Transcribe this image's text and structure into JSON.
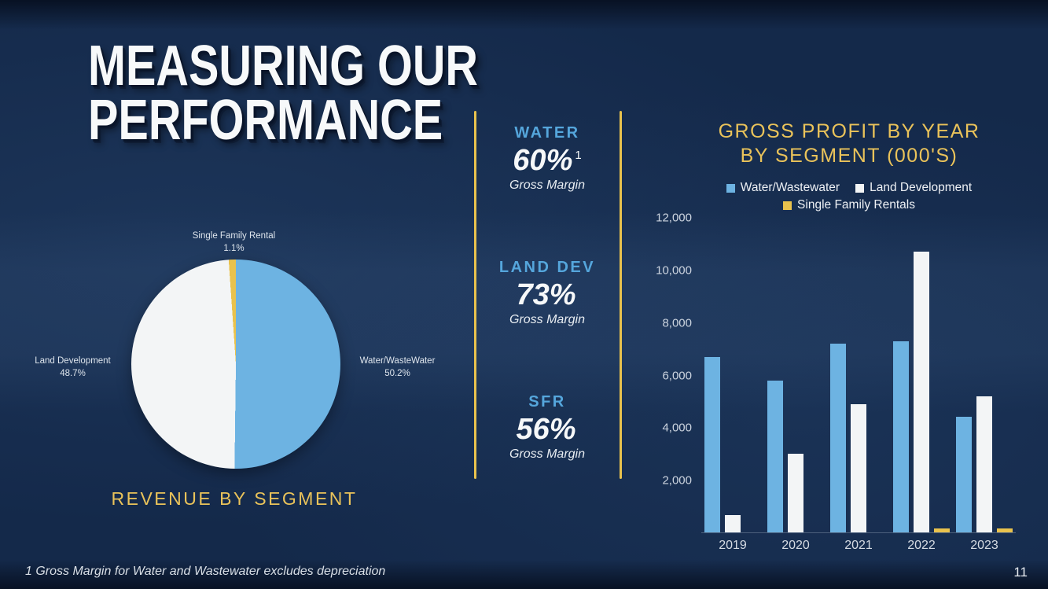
{
  "slide": {
    "title_line1": "MEASURING OUR",
    "title_line2": "PERFORMANCE",
    "footnote": "1 Gross Margin for Water and Wastewater excludes depreciation",
    "page_number": "11"
  },
  "colors": {
    "background": "#14294a",
    "accent_yellow": "#e9c24d",
    "accent_blue": "#6db3e2",
    "segment_label_blue": "#55a6dc",
    "white_series": "#f3f5f6"
  },
  "margins": {
    "items": [
      {
        "segment": "WATER",
        "value": "60%",
        "superscript": "1",
        "label": "Gross Margin"
      },
      {
        "segment": "LAND DEV",
        "value": "73%",
        "superscript": "",
        "label": "Gross Margin"
      },
      {
        "segment": "SFR",
        "value": "56%",
        "superscript": "",
        "label": "Gross Margin"
      }
    ]
  },
  "chart_data": [
    {
      "type": "pie",
      "title": "REVENUE BY SEGMENT",
      "slices": [
        {
          "label": "Water/WasteWater",
          "pct": 50.2,
          "pct_label": "50.2%",
          "color": "#6db3e2"
        },
        {
          "label": "Land Development",
          "pct": 48.7,
          "pct_label": "48.7%",
          "color": "#f3f5f6"
        },
        {
          "label": "Single Family Rental",
          "pct": 1.1,
          "pct_label": "1.1%",
          "color": "#e9c24d"
        }
      ],
      "legend_position": "labels-around-pie"
    },
    {
      "type": "bar",
      "title": "GROSS PROFIT BY YEAR BY SEGMENT (000'S)",
      "title_lines": [
        "GROSS PROFIT BY YEAR",
        "BY SEGMENT (000'S)"
      ],
      "categories": [
        "2019",
        "2020",
        "2021",
        "2022",
        "2023"
      ],
      "series": [
        {
          "name": "Water/Wastewater",
          "color": "#6db3e2",
          "values": [
            6700,
            5800,
            7200,
            7300,
            4400
          ]
        },
        {
          "name": "Land Development",
          "color": "#f3f5f6",
          "values": [
            650,
            3000,
            4900,
            10700,
            5200
          ]
        },
        {
          "name": "Single Family Rentals",
          "color": "#e9c24d",
          "values": [
            0,
            0,
            0,
            150,
            150
          ]
        }
      ],
      "ylim": [
        0,
        12000
      ],
      "yticks": [
        "12,000",
        "10,000",
        "8,000",
        "6,000",
        "4,000",
        "2,000"
      ],
      "grid": false,
      "legend_position": "top"
    }
  ]
}
